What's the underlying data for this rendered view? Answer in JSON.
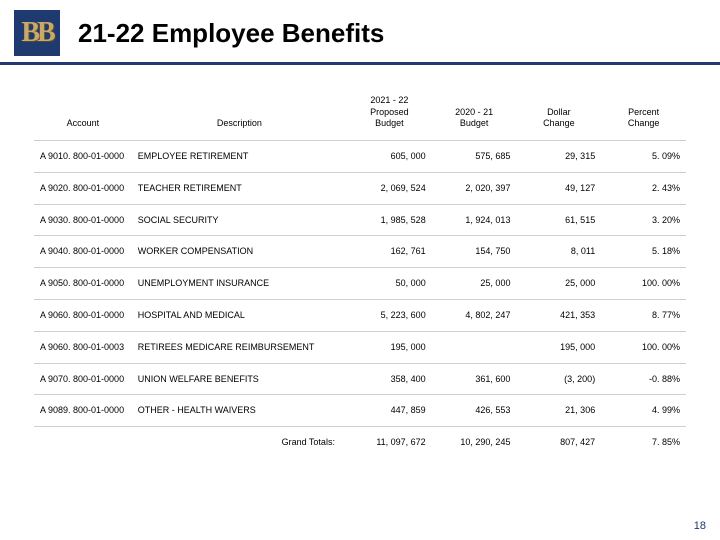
{
  "logo": {
    "text": "BB"
  },
  "title": "21-22 Employee Benefits",
  "page_number": "18",
  "table": {
    "headers": {
      "account": "Account",
      "description": "Description",
      "proposed": "2021 - 22\nProposed\nBudget",
      "prior": "2020 - 21\nBudget",
      "dollar_change": "Dollar\nChange",
      "percent_change": "Percent\nChange"
    },
    "rows": [
      {
        "account": "A 9010. 800-01-0000",
        "description": "EMPLOYEE RETIREMENT",
        "proposed": "605, 000",
        "prior": "575, 685",
        "dollar_change": "29, 315",
        "percent_change": "5. 09%"
      },
      {
        "account": "A 9020. 800-01-0000",
        "description": "TEACHER RETIREMENT",
        "proposed": "2, 069, 524",
        "prior": "2, 020, 397",
        "dollar_change": "49, 127",
        "percent_change": "2. 43%"
      },
      {
        "account": "A 9030. 800-01-0000",
        "description": "SOCIAL SECURITY",
        "proposed": "1, 985, 528",
        "prior": "1, 924, 013",
        "dollar_change": "61, 515",
        "percent_change": "3. 20%"
      },
      {
        "account": "A 9040. 800-01-0000",
        "description": "WORKER COMPENSATION",
        "proposed": "162, 761",
        "prior": "154, 750",
        "dollar_change": "8, 011",
        "percent_change": "5. 18%"
      },
      {
        "account": "A 9050. 800-01-0000",
        "description": "UNEMPLOYMENT INSURANCE",
        "proposed": "50, 000",
        "prior": "25, 000",
        "dollar_change": "25, 000",
        "percent_change": "100. 00%"
      },
      {
        "account": "A 9060. 800-01-0000",
        "description": "HOSPITAL AND MEDICAL",
        "proposed": "5, 223, 600",
        "prior": "4, 802, 247",
        "dollar_change": "421, 353",
        "percent_change": "8. 77%"
      },
      {
        "account": "A 9060. 800-01-0003",
        "description": "RETIREES  MEDICARE REIMBURSEMENT",
        "proposed": "195, 000",
        "prior": "",
        "dollar_change": "195, 000",
        "percent_change": "100. 00%"
      },
      {
        "account": "A 9070. 800-01-0000",
        "description": "UNION WELFARE BENEFITS",
        "proposed": "358, 400",
        "prior": "361, 600",
        "dollar_change": "(3, 200)",
        "percent_change": "-0. 88%"
      },
      {
        "account": "A 9089. 800-01-0000",
        "description": "OTHER - HEALTH WAIVERS",
        "proposed": "447, 859",
        "prior": "426, 553",
        "dollar_change": "21, 306",
        "percent_change": "4. 99%"
      }
    ],
    "totals": {
      "label": "Grand Totals:",
      "proposed": "11, 097, 672",
      "prior": "10, 290, 245",
      "dollar_change": "807, 427",
      "percent_change": "7. 85%"
    }
  },
  "style": {
    "accent_color": "#1f3a6e",
    "logo_bg": "#1f3a6e",
    "logo_fg": "#c9a96a",
    "row_border": "#cfcfcf",
    "bg": "#ffffff",
    "title_fontsize": 26,
    "table_fontsize": 9
  }
}
